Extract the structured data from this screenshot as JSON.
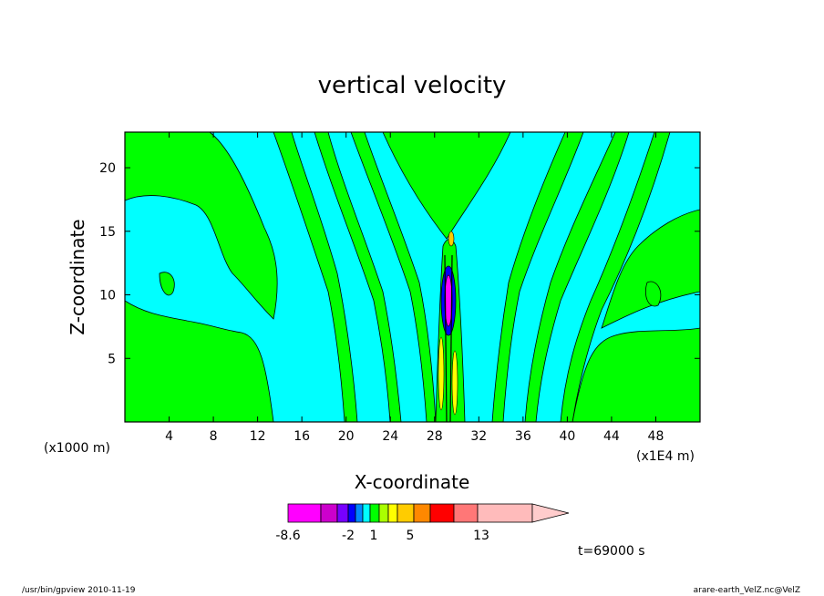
{
  "chart_data": {
    "type": "heatmap",
    "title": "vertical velocity",
    "xlabel": "X-coordinate",
    "ylabel": "Z-coordinate",
    "x_unit": "(x1E4 m)",
    "y_unit": "(x1000 m)",
    "xlim": [
      0,
      52
    ],
    "ylim": [
      0,
      22.8
    ],
    "x_ticks": [
      4,
      8,
      12,
      16,
      20,
      24,
      28,
      32,
      36,
      40,
      44,
      48
    ],
    "y_ticks": [
      5,
      10,
      15,
      20
    ],
    "colorbar": {
      "labels": [
        "-8.6",
        "-2",
        "1",
        "5",
        "13"
      ],
      "colors": [
        "#ff00ff",
        "#cc00cc",
        "#7700ff",
        "#0000ff",
        "#0088ff",
        "#00ffff",
        "#00ff00",
        "#aaff00",
        "#ffff00",
        "#ffcc00",
        "#ff8800",
        "#ff0000",
        "#ff7777",
        "#ffbbbb"
      ]
    },
    "time_label": "t=69000 s"
  },
  "footer": {
    "left": "/usr/bin/gpview   2010-11-19",
    "right": "arare-earth_VelZ.nc@VelZ"
  }
}
